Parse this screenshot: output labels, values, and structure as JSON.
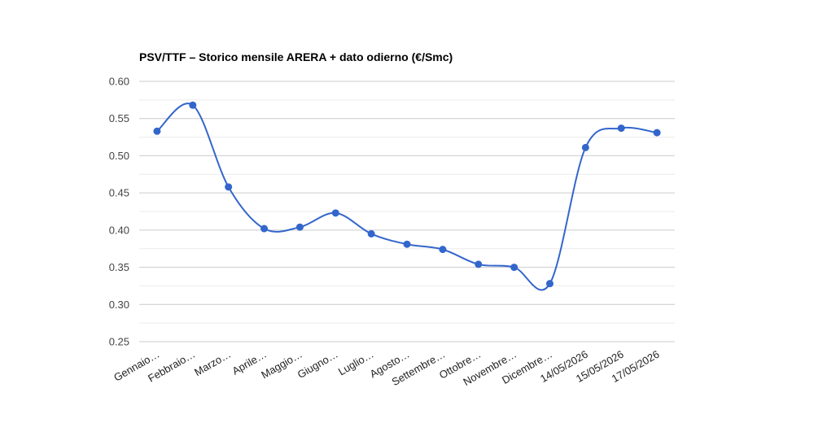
{
  "chart_data": {
    "type": "line",
    "title": "PSV/TTF – Storico mensile ARERA + dato odierno (€/Smc)",
    "xlabel": "",
    "ylabel": "",
    "categories": [
      "Gennaio…",
      "Febbraio…",
      "Marzo…",
      "Aprile…",
      "Maggio…",
      "Giugno…",
      "Luglio…",
      "Agosto…",
      "Settembre…",
      "Ottobre…",
      "Novembre…",
      "Dicembre…",
      "14/05/2026",
      "15/05/2026",
      "17/05/2026"
    ],
    "series": [
      {
        "values": [
          0.533,
          0.568,
          0.458,
          0.402,
          0.404,
          0.423,
          0.395,
          0.381,
          0.374,
          0.354,
          0.35,
          0.328,
          0.511,
          0.537,
          0.531
        ],
        "color": "#3366cc"
      }
    ],
    "yticks": [
      "0.25",
      "0.30",
      "0.35",
      "0.40",
      "0.45",
      "0.50",
      "0.55",
      "0.60"
    ],
    "ylim": [
      0.25,
      0.6
    ],
    "grid": true,
    "minor_grid": true,
    "legend": "none",
    "smooth": true
  }
}
